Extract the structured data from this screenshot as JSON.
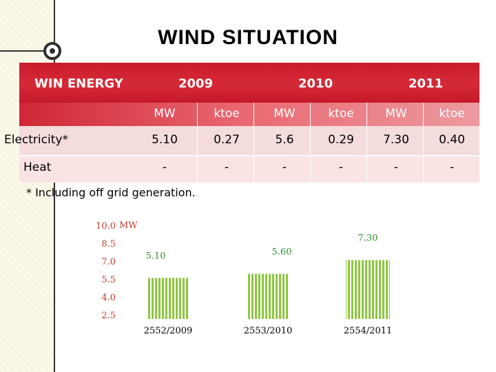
{
  "title": "WIND SITUATION",
  "table": {
    "corner_label": "WIN ENERGY",
    "years": [
      "2009",
      "2010",
      "2011"
    ],
    "units": [
      "MW",
      "ktoe",
      "MW",
      "ktoe",
      "MW",
      "ktoe"
    ],
    "rows": [
      {
        "label": "Electricity*",
        "values": [
          "5.10",
          "0.27",
          "5.6",
          "0.29",
          "7.30",
          "0.40"
        ]
      },
      {
        "label": "Heat",
        "values": [
          "-",
          "-",
          "-",
          "-",
          "-",
          "-"
        ]
      }
    ]
  },
  "footnote": "*  Including off grid generation.",
  "colors": {
    "header_red": "#c91c2b",
    "bar_green": "#8cc63f",
    "axis_text": "#c0392b",
    "value_text": "#2e8b2e"
  },
  "chart_data": {
    "type": "bar",
    "categories": [
      "2552/2009",
      "2553/2010",
      "2554/2011"
    ],
    "values": [
      5.1,
      5.6,
      7.3
    ],
    "value_labels": [
      "5.10",
      "5.60",
      "7.30"
    ],
    "y_ticks": [
      "10.0",
      "8.5",
      "7.0",
      "5.5",
      "4.0",
      "2.5"
    ],
    "y_unit": "MW",
    "title": "",
    "xlabel": "",
    "ylabel": "",
    "ylim": [
      2.5,
      10.0
    ],
    "grid": false
  }
}
